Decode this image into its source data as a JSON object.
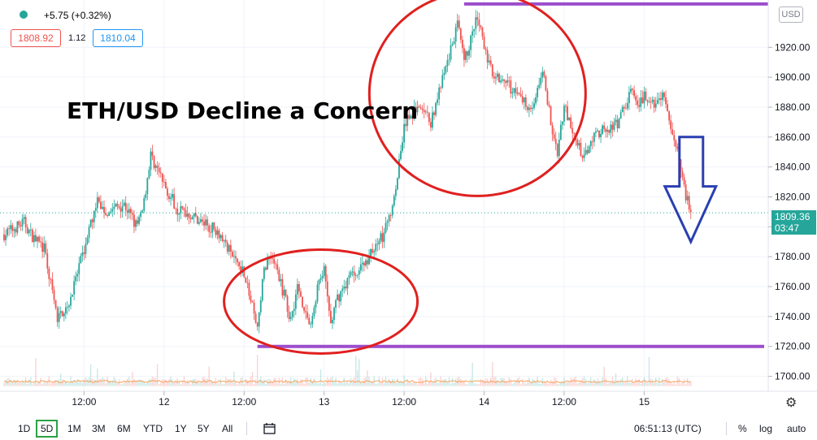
{
  "header": {
    "change_text": "+5.75 (+0.32%)",
    "status_color": "#26a69a",
    "bid": "1808.92",
    "spread": "1.12",
    "ask": "1810.04",
    "currency": "USD"
  },
  "annotation_title": "ETH/USD Decline a Concern",
  "last_price": {
    "value": "1809.36",
    "countdown": "03:47"
  },
  "toolbar": {
    "ranges": [
      "1D",
      "5D",
      "1M",
      "3M",
      "6M",
      "YTD",
      "1Y",
      "5Y",
      "All"
    ],
    "active_range": "5D",
    "compare_icon": "calendar-range-icon",
    "clock": "06:51:13 (UTC)",
    "percent_label": "%",
    "log_label": "log",
    "auto_label": "auto",
    "settings_icon": "gear-icon"
  },
  "chart_data": {
    "type": "candlestick",
    "y_axis_side": "right",
    "ylim": [
      1690,
      1950
    ],
    "y_ticks": [
      1700,
      1720,
      1740,
      1760,
      1780,
      1800,
      1820,
      1840,
      1860,
      1880,
      1900,
      1920
    ],
    "y_tick_labels": [
      "1700.00",
      "1720.00",
      "1740.00",
      "1760.00",
      "1780.00",
      "1800.00",
      "1820.00",
      "1840.00",
      "1860.00",
      "1880.00",
      "1900.00",
      "1920.00"
    ],
    "x_range": [
      0,
      114
    ],
    "x_ticks": [
      {
        "t": 12,
        "label": "12:00"
      },
      {
        "t": 24,
        "label": "12"
      },
      {
        "t": 36,
        "label": "12:00"
      },
      {
        "t": 48,
        "label": "13"
      },
      {
        "t": 60,
        "label": "12:00"
      },
      {
        "t": 72,
        "label": "14"
      },
      {
        "t": 84,
        "label": "12:00"
      },
      {
        "t": 96,
        "label": "15"
      }
    ],
    "price_path": [
      [
        0,
        1795
      ],
      [
        3,
        1803
      ],
      [
        4,
        1795
      ],
      [
        6,
        1785
      ],
      [
        8,
        1738
      ],
      [
        10,
        1752
      ],
      [
        12,
        1785
      ],
      [
        14,
        1818
      ],
      [
        15,
        1810
      ],
      [
        18,
        1815
      ],
      [
        20,
        1800
      ],
      [
        21,
        1818
      ],
      [
        22,
        1848
      ],
      [
        24,
        1828
      ],
      [
        26,
        1812
      ],
      [
        28,
        1808
      ],
      [
        30,
        1802
      ],
      [
        32,
        1798
      ],
      [
        34,
        1782
      ],
      [
        36,
        1770
      ],
      [
        37,
        1750
      ],
      [
        38,
        1732
      ],
      [
        39,
        1772
      ],
      [
        40,
        1782
      ],
      [
        41,
        1770
      ],
      [
        43,
        1738
      ],
      [
        44,
        1760
      ],
      [
        46,
        1732
      ],
      [
        47,
        1760
      ],
      [
        48,
        1770
      ],
      [
        49,
        1735
      ],
      [
        50,
        1752
      ],
      [
        52,
        1768
      ],
      [
        54,
        1775
      ],
      [
        56,
        1790
      ],
      [
        57,
        1795
      ],
      [
        58,
        1810
      ],
      [
        59,
        1835
      ],
      [
        60,
        1868
      ],
      [
        62,
        1880
      ],
      [
        64,
        1870
      ],
      [
        66,
        1902
      ],
      [
        68,
        1935
      ],
      [
        69,
        1910
      ],
      [
        70,
        1925
      ],
      [
        71,
        1940
      ],
      [
        72,
        1920
      ],
      [
        73,
        1905
      ],
      [
        75,
        1898
      ],
      [
        77,
        1888
      ],
      [
        79,
        1880
      ],
      [
        80,
        1890
      ],
      [
        81,
        1903
      ],
      [
        82,
        1868
      ],
      [
        83,
        1850
      ],
      [
        84,
        1882
      ],
      [
        85,
        1865
      ],
      [
        87,
        1845
      ],
      [
        88,
        1860
      ],
      [
        90,
        1865
      ],
      [
        92,
        1868
      ],
      [
        94,
        1892
      ],
      [
        95,
        1878
      ],
      [
        96,
        1888
      ],
      [
        97,
        1880
      ],
      [
        99,
        1888
      ],
      [
        100,
        1862
      ],
      [
        101,
        1855
      ],
      [
        102,
        1825
      ],
      [
        103,
        1809
      ]
    ],
    "volume_baseline": 1700,
    "support_line": 1720,
    "resistance_line": 1949,
    "last_price": 1809.36
  }
}
